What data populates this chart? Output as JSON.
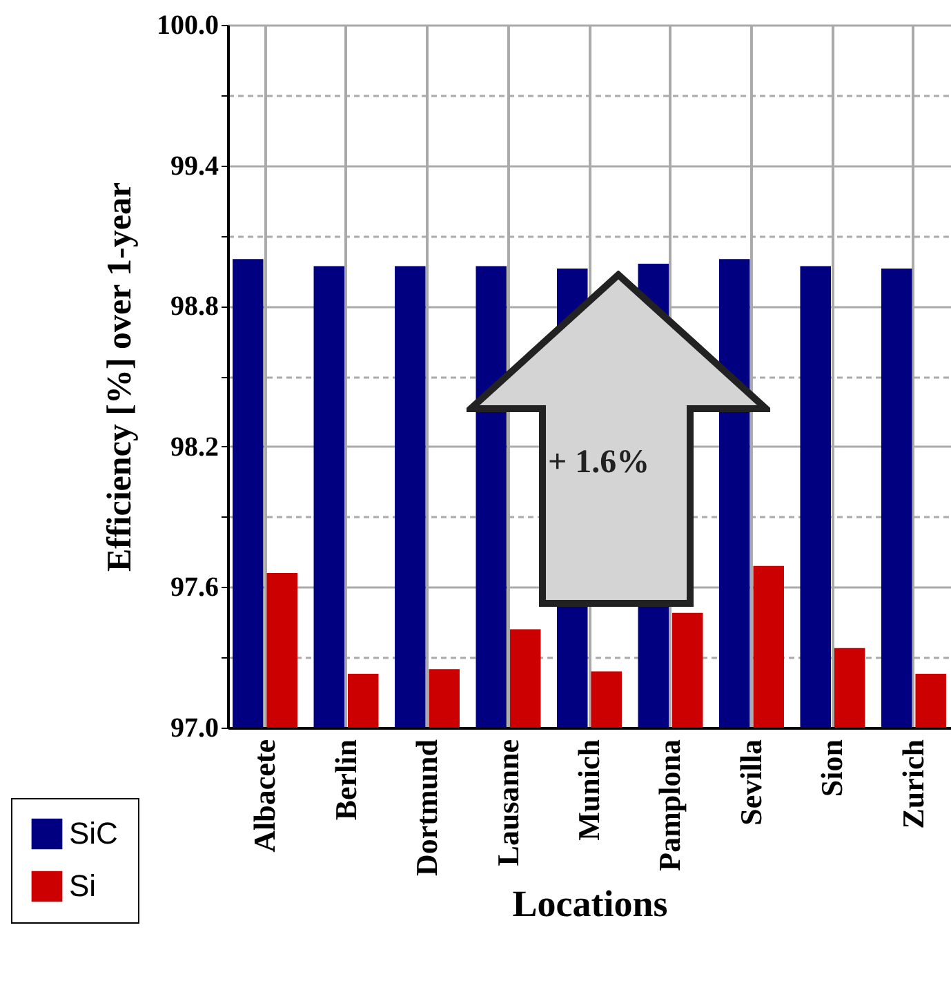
{
  "chart_data": {
    "type": "bar",
    "xlabel": "Locations",
    "ylabel": "Efficiency [%] over 1-year",
    "categories": [
      "Albacete",
      "Berlin",
      "Dortmund",
      "Lausanne",
      "Munich",
      "Pamplona",
      "Sevilla",
      "Sion",
      "Zurich"
    ],
    "series": [
      {
        "name": "SiC",
        "color": "#000080",
        "values": [
          99.0,
          98.97,
          98.97,
          98.97,
          98.96,
          98.98,
          99.0,
          98.97,
          98.96
        ]
      },
      {
        "name": "Si",
        "color": "#cc0000",
        "values": [
          97.66,
          97.23,
          97.25,
          97.42,
          97.24,
          97.49,
          97.69,
          97.34,
          97.23
        ]
      }
    ],
    "ylim": [
      97.0,
      100.0
    ],
    "yticks": [
      {
        "value": 97.0,
        "label": "97.0"
      },
      {
        "value": 97.3,
        "label": null
      },
      {
        "value": 97.6,
        "label": "97.6"
      },
      {
        "value": 97.9,
        "label": null
      },
      {
        "value": 98.2,
        "label": "98.2"
      },
      {
        "value": 98.5,
        "label": null
      },
      {
        "value": 98.8,
        "label": "98.8"
      },
      {
        "value": 99.1,
        "label": null
      },
      {
        "value": 99.4,
        "label": "99.4"
      },
      {
        "value": 99.7,
        "label": null
      },
      {
        "value": 100.0,
        "label": "100.0"
      }
    ],
    "grid": true,
    "legend": "bottom left",
    "annotations": [
      "+ 1.6%"
    ]
  }
}
